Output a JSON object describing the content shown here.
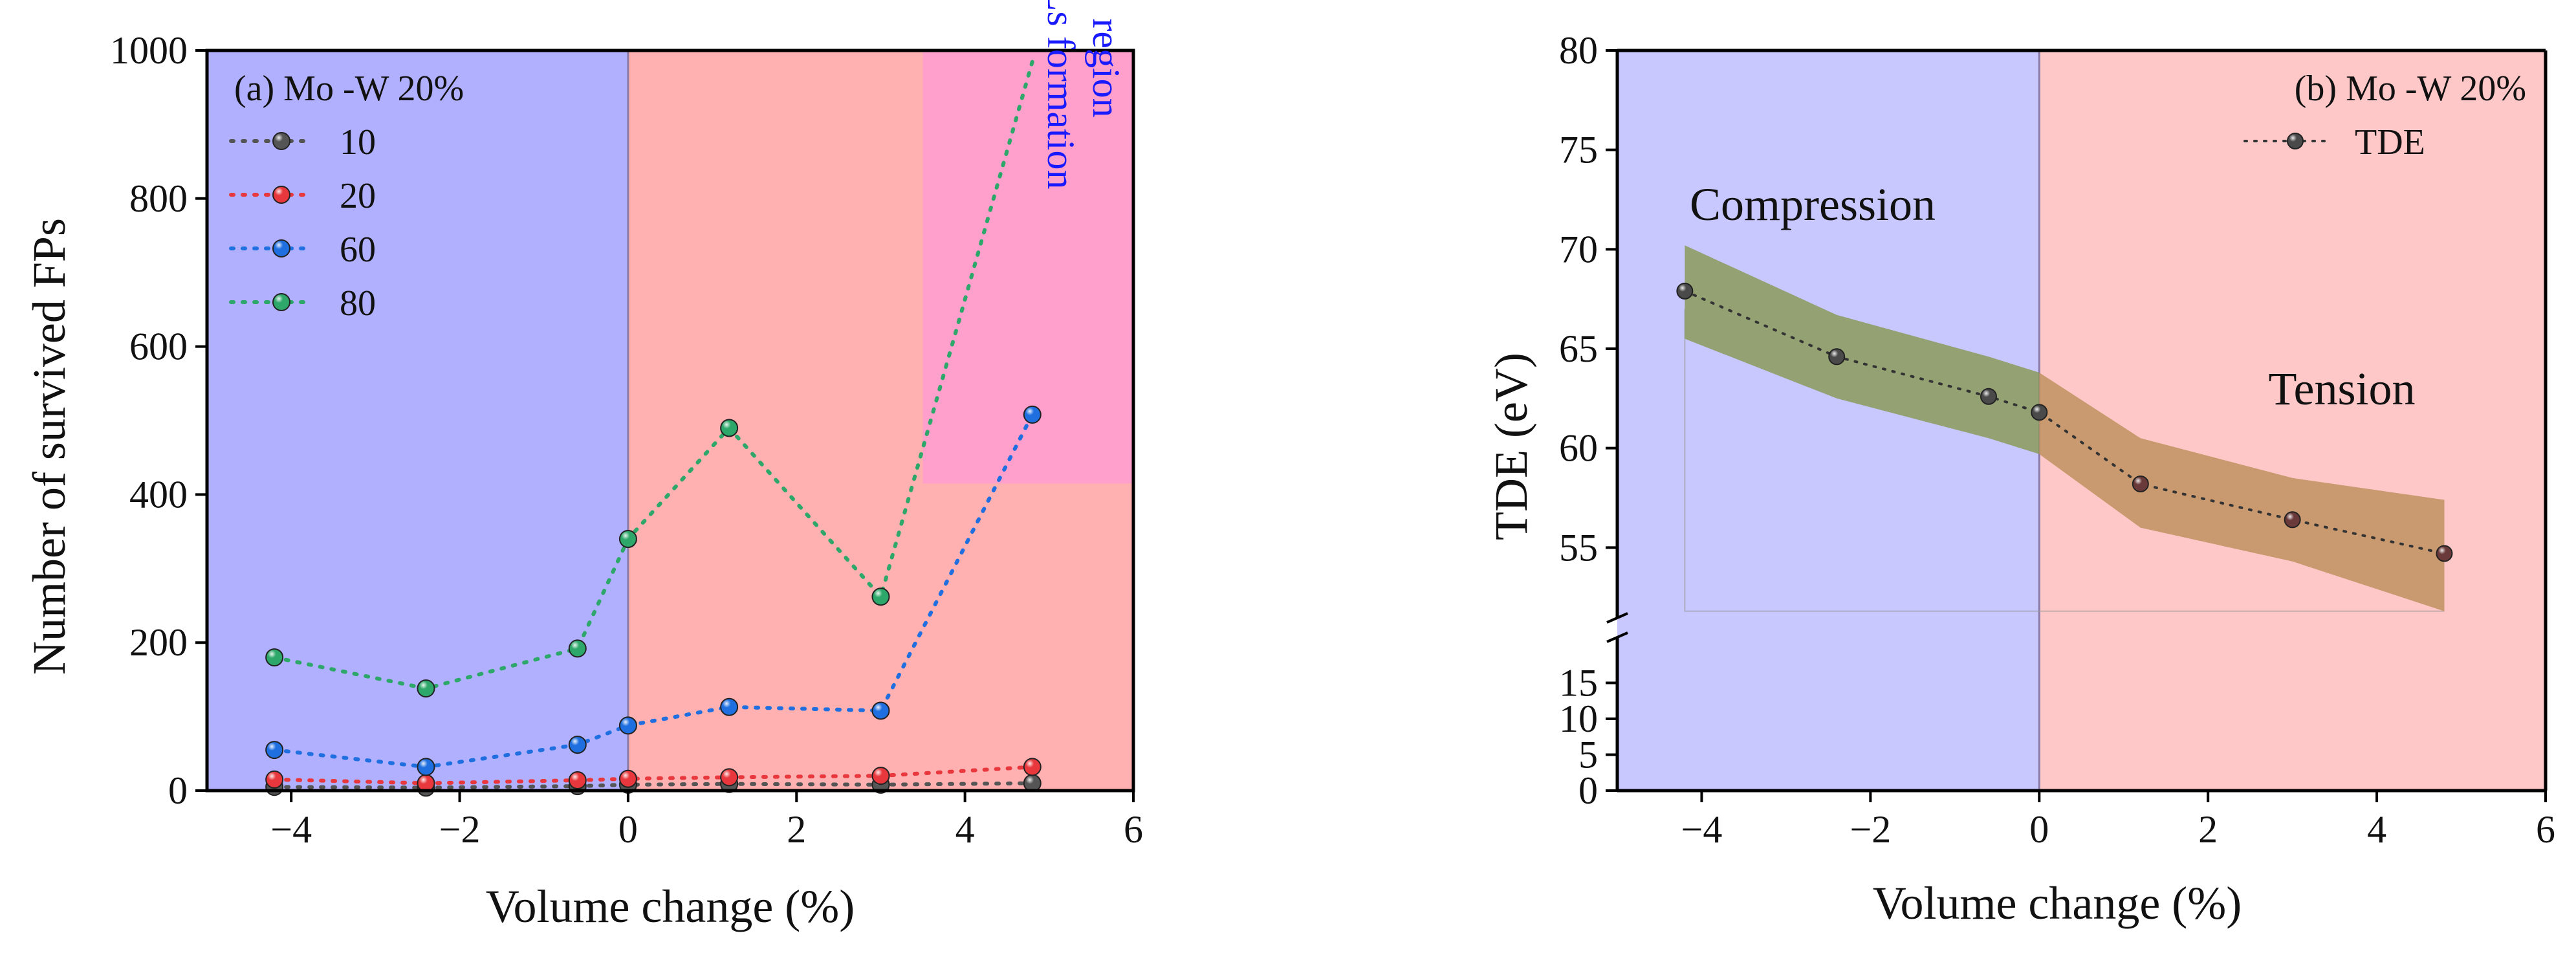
{
  "chart_data": [
    {
      "type": "line",
      "panel_label": "(a) Mo -W 20%",
      "xlabel": "Volume change (%)",
      "ylabel": "Number of survived FPs",
      "xlim": [
        -5,
        6
      ],
      "ylim": [
        0,
        1000
      ],
      "xticks": [
        -4,
        -2,
        0,
        2,
        4,
        6
      ],
      "yticks": [
        0,
        200,
        400,
        600,
        800,
        1000
      ],
      "legend_position": "top-left",
      "x": [
        -4.2,
        -2.4,
        -0.6,
        0,
        1.2,
        3.0,
        4.8
      ],
      "series": [
        {
          "name": "10",
          "color": "#555555",
          "values": [
            5,
            4,
            6,
            8,
            9,
            8,
            10
          ]
        },
        {
          "name": "20",
          "color": "#e8383d",
          "values": [
            15,
            10,
            14,
            16,
            18,
            20,
            32
          ]
        },
        {
          "name": "60",
          "color": "#1f6fe0",
          "values": [
            55,
            32,
            62,
            88,
            113,
            108,
            508
          ]
        },
        {
          "name": "80",
          "color": "#2ea86a",
          "values": [
            180,
            138,
            192,
            340,
            490,
            262,
            985
          ]
        }
      ],
      "regions": [
        {
          "name": "compression",
          "x0": -5,
          "x1": 0,
          "color": "#b0b0ff"
        },
        {
          "name": "tension",
          "x0": 0,
          "x1": 6,
          "color": "#ffb0b0"
        },
        {
          "name": "idl",
          "x0": 3.5,
          "x1": 6,
          "y0": 415,
          "y1": 1000,
          "color": "#ffa0cc"
        }
      ],
      "annotation": "IDLs formation region",
      "annotation_color": "#1a1aff"
    },
    {
      "type": "line",
      "panel_label": "(b) Mo -W 20%",
      "xlabel": "Volume change (%)",
      "ylabel": "TDE (eV)",
      "xlim": [
        -5,
        6
      ],
      "axis_break": true,
      "lower_ylim": [
        0,
        20
      ],
      "lower_yticks": [
        0,
        5,
        10,
        15
      ],
      "upper_ylim": [
        50,
        80
      ],
      "upper_yticks": [
        55,
        60,
        65,
        70,
        75,
        80
      ],
      "xticks": [
        -4,
        -2,
        0,
        2,
        4,
        6
      ],
      "legend_position": "top-right",
      "x": [
        -4.2,
        -2.4,
        -0.6,
        0,
        1.2,
        3.0,
        4.8
      ],
      "series": [
        {
          "name": "TDE",
          "color": "#555555",
          "values": [
            67.9,
            64.6,
            62.6,
            61.8,
            58.2,
            56.4,
            54.7
          ]
        }
      ],
      "band": {
        "upper": [
          70.2,
          66.7,
          64.6,
          63.8,
          60.5,
          58.5,
          57.4
        ],
        "lower": [
          65.5,
          62.5,
          60.5,
          59.7,
          56.0,
          54.3,
          51.8
        ],
        "color_left": "#8a9a5a",
        "color_right": "#c09060"
      },
      "regions": [
        {
          "name": "compression",
          "x0": -5,
          "x1": 0,
          "color": "#c8c8ff"
        },
        {
          "name": "tension",
          "x0": 0,
          "x1": 6,
          "color": "#ffc8c8"
        }
      ],
      "annotations": [
        "Compression",
        "Tension"
      ]
    }
  ]
}
